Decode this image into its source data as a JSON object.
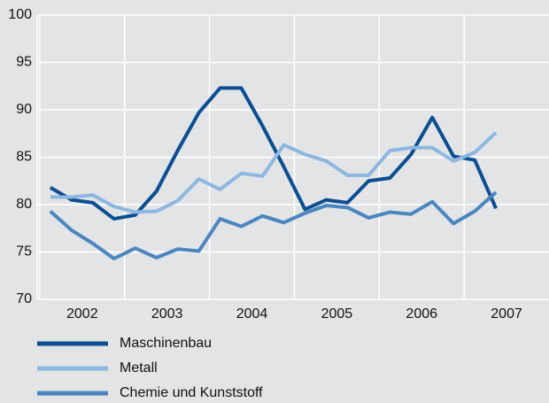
{
  "chart_data": {
    "type": "line",
    "x": [
      2002.125,
      2002.375,
      2002.625,
      2002.875,
      2003.125,
      2003.375,
      2003.625,
      2003.875,
      2004.125,
      2004.375,
      2004.625,
      2004.875,
      2005.125,
      2005.375,
      2005.625,
      2005.875,
      2006.125,
      2006.375,
      2006.625,
      2006.875,
      2007.125,
      2007.375
    ],
    "series": [
      {
        "name": "Maschinenbau",
        "color": "#0b4e92",
        "values": [
          81.8,
          80.5,
          80.2,
          78.5,
          78.9,
          81.4,
          85.7,
          89.7,
          92.3,
          92.3,
          88.3,
          84.0,
          79.5,
          80.5,
          80.2,
          82.5,
          82.8,
          85.3,
          89.2,
          85.1,
          84.7,
          79.6
        ]
      },
      {
        "name": "Metall",
        "color": "#8db7e0",
        "values": [
          80.8,
          80.8,
          81.0,
          79.8,
          79.2,
          79.3,
          80.4,
          82.7,
          81.6,
          83.3,
          83.0,
          86.3,
          85.3,
          84.6,
          83.1,
          83.1,
          85.7,
          86.0,
          86.0,
          84.6,
          85.5,
          87.6
        ]
      },
      {
        "name": "Chemie und Kunststoff",
        "color": "#4c86c0",
        "values": [
          79.3,
          77.3,
          75.9,
          74.3,
          75.4,
          74.4,
          75.3,
          75.1,
          78.5,
          77.7,
          78.8,
          78.1,
          79.1,
          79.9,
          79.7,
          78.6,
          79.2,
          79.0,
          80.3,
          78.0,
          79.3,
          81.3
        ]
      }
    ],
    "xlim": [
      2001.97,
      2008
    ],
    "xticks": [
      2002,
      2003,
      2004,
      2005,
      2006,
      2007
    ],
    "ylim": [
      70,
      100
    ],
    "yticks": [
      70,
      75,
      80,
      85,
      90,
      95,
      100
    ],
    "grid": true
  }
}
